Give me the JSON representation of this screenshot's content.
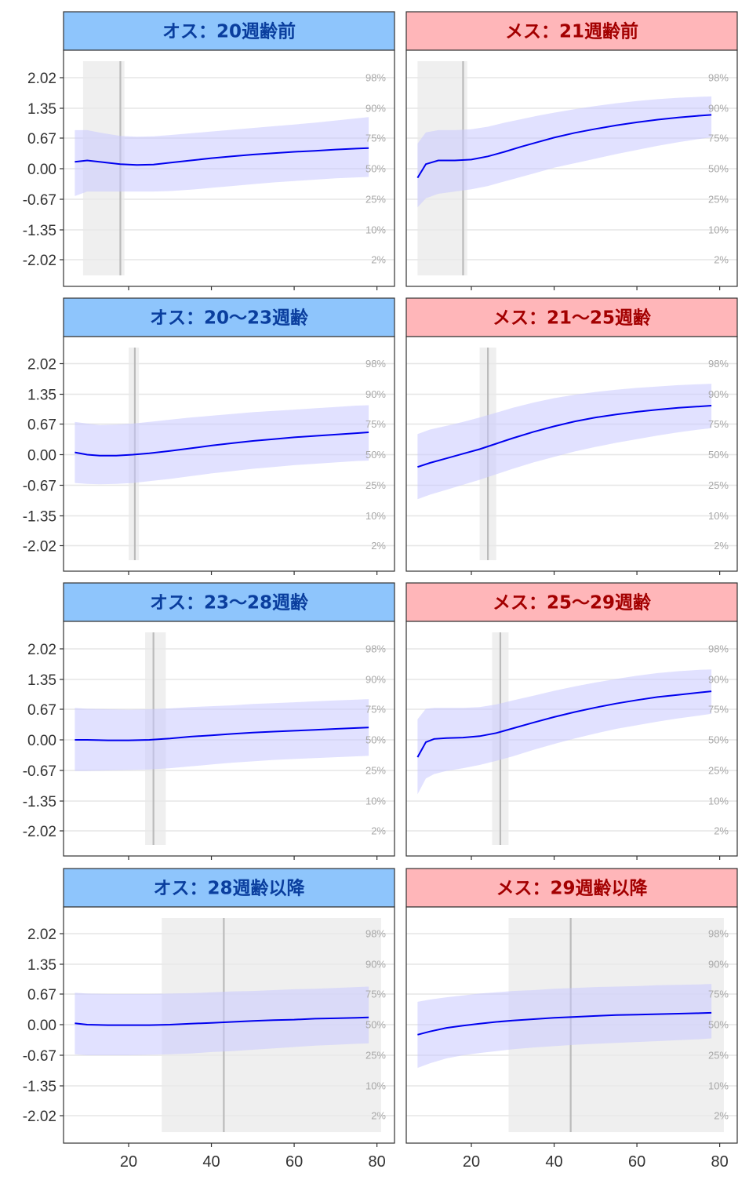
{
  "chart_data": {
    "type": "line",
    "y_ticks": [
      2.02,
      1.35,
      0.67,
      0.0,
      -0.67,
      -1.35,
      -2.02
    ],
    "y_tick_labels": [
      "2.02",
      "1.35",
      "0.67",
      "0.00",
      "-0.67",
      "-1.35",
      "-2.02"
    ],
    "percentile_labels": [
      "98%",
      "90%",
      "75%",
      "50%",
      "25%",
      "10%",
      "2%"
    ],
    "x_ticks": [
      20,
      40,
      60,
      80
    ],
    "x_tick_labels": [
      "20",
      "40",
      "60",
      "80"
    ],
    "xlim": [
      5,
      83
    ],
    "ylim": [
      -2.5,
      2.6
    ],
    "grid": "horizontal",
    "colors": {
      "male_strip": "#8ec5fc",
      "male_text": "#0a3e9e",
      "female_strip": "#ffb6b9",
      "female_text": "#a30000",
      "line": "#0000ee",
      "band": "#d6d6ff",
      "highlight": "#e8e8e8",
      "grid": "#e6e6e6"
    },
    "panels": [
      {
        "title": "オス：20週齢前",
        "sex": "male",
        "x": [
          7,
          10,
          14,
          18,
          22,
          26,
          30,
          35,
          40,
          45,
          50,
          55,
          60,
          65,
          70,
          75,
          78
        ],
        "median": [
          0.15,
          0.18,
          0.14,
          0.1,
          0.08,
          0.09,
          0.13,
          0.18,
          0.23,
          0.27,
          0.31,
          0.34,
          0.37,
          0.39,
          0.42,
          0.44,
          0.45
        ],
        "upper": [
          0.85,
          0.85,
          0.78,
          0.72,
          0.7,
          0.71,
          0.74,
          0.78,
          0.82,
          0.86,
          0.9,
          0.94,
          0.98,
          1.02,
          1.07,
          1.12,
          1.15
        ],
        "lower": [
          -0.6,
          -0.5,
          -0.5,
          -0.5,
          -0.5,
          -0.5,
          -0.49,
          -0.46,
          -0.42,
          -0.38,
          -0.34,
          -0.3,
          -0.27,
          -0.24,
          -0.21,
          -0.19,
          -0.18
        ],
        "highlight": [
          9,
          19
        ],
        "vline": 18
      },
      {
        "title": "メス：21週齢前",
        "sex": "female",
        "x": [
          7,
          9,
          12,
          16,
          20,
          24,
          28,
          32,
          36,
          40,
          45,
          50,
          55,
          60,
          65,
          70,
          75,
          78
        ],
        "median": [
          -0.2,
          0.1,
          0.18,
          0.18,
          0.2,
          0.27,
          0.37,
          0.48,
          0.58,
          0.68,
          0.79,
          0.88,
          0.96,
          1.03,
          1.09,
          1.14,
          1.18,
          1.2
        ],
        "upper": [
          0.55,
          0.8,
          0.85,
          0.85,
          0.87,
          0.93,
          1.02,
          1.1,
          1.18,
          1.25,
          1.33,
          1.4,
          1.46,
          1.51,
          1.55,
          1.58,
          1.6,
          1.61
        ],
        "lower": [
          -0.85,
          -0.65,
          -0.55,
          -0.5,
          -0.45,
          -0.38,
          -0.28,
          -0.18,
          -0.08,
          0.02,
          0.12,
          0.22,
          0.32,
          0.41,
          0.5,
          0.58,
          0.65,
          0.69
        ],
        "highlight": [
          7,
          19
        ],
        "vline": 18
      },
      {
        "title": "オス：20～23週齢",
        "sex": "male",
        "x": [
          7,
          10,
          13,
          17,
          21,
          25,
          30,
          35,
          40,
          45,
          50,
          55,
          60,
          65,
          70,
          75,
          78
        ],
        "median": [
          0.05,
          0.0,
          -0.02,
          -0.02,
          0.0,
          0.03,
          0.08,
          0.14,
          0.2,
          0.25,
          0.3,
          0.34,
          0.38,
          0.41,
          0.44,
          0.47,
          0.49
        ],
        "upper": [
          0.72,
          0.68,
          0.65,
          0.66,
          0.68,
          0.72,
          0.77,
          0.82,
          0.86,
          0.9,
          0.94,
          0.97,
          1.0,
          1.03,
          1.06,
          1.09,
          1.1
        ],
        "lower": [
          -0.62,
          -0.64,
          -0.65,
          -0.64,
          -0.62,
          -0.58,
          -0.53,
          -0.47,
          -0.41,
          -0.36,
          -0.31,
          -0.27,
          -0.23,
          -0.2,
          -0.17,
          -0.14,
          -0.13
        ],
        "highlight": [
          20,
          22.5
        ],
        "vline": 21.5
      },
      {
        "title": "メス：21～25週齢",
        "sex": "female",
        "x": [
          7,
          10,
          14,
          18,
          22,
          26,
          30,
          35,
          40,
          45,
          50,
          55,
          60,
          65,
          70,
          75,
          78
        ],
        "median": [
          -0.27,
          -0.18,
          -0.08,
          0.02,
          0.12,
          0.24,
          0.36,
          0.5,
          0.62,
          0.73,
          0.82,
          0.89,
          0.95,
          1.0,
          1.04,
          1.07,
          1.09
        ],
        "upper": [
          0.45,
          0.55,
          0.63,
          0.72,
          0.82,
          0.93,
          1.04,
          1.16,
          1.26,
          1.34,
          1.4,
          1.45,
          1.49,
          1.52,
          1.55,
          1.57,
          1.58
        ],
        "lower": [
          -0.98,
          -0.88,
          -0.77,
          -0.66,
          -0.55,
          -0.43,
          -0.31,
          -0.17,
          -0.05,
          0.07,
          0.17,
          0.26,
          0.34,
          0.42,
          0.49,
          0.55,
          0.58
        ],
        "highlight": [
          22,
          26
        ],
        "vline": 24
      },
      {
        "title": "オス：23～28週齢",
        "sex": "male",
        "x": [
          7,
          10,
          15,
          20,
          25,
          30,
          35,
          40,
          45,
          50,
          55,
          60,
          65,
          70,
          75,
          78
        ],
        "median": [
          0.0,
          0.0,
          -0.01,
          -0.01,
          0.0,
          0.03,
          0.07,
          0.1,
          0.13,
          0.16,
          0.18,
          0.2,
          0.22,
          0.24,
          0.26,
          0.27
        ],
        "upper": [
          0.7,
          0.68,
          0.67,
          0.66,
          0.67,
          0.69,
          0.72,
          0.74,
          0.76,
          0.79,
          0.81,
          0.83,
          0.85,
          0.87,
          0.89,
          0.9
        ],
        "lower": [
          -0.68,
          -0.68,
          -0.67,
          -0.66,
          -0.65,
          -0.62,
          -0.58,
          -0.54,
          -0.5,
          -0.47,
          -0.44,
          -0.42,
          -0.4,
          -0.38,
          -0.36,
          -0.35
        ],
        "highlight": [
          24,
          29
        ],
        "vline": 26
      },
      {
        "title": "メス：25～29週齢",
        "sex": "female",
        "x": [
          7,
          9,
          11,
          14,
          18,
          22,
          26,
          30,
          35,
          40,
          45,
          50,
          55,
          60,
          65,
          70,
          75,
          78
        ],
        "median": [
          -0.38,
          -0.05,
          0.02,
          0.04,
          0.05,
          0.08,
          0.15,
          0.25,
          0.38,
          0.5,
          0.61,
          0.71,
          0.8,
          0.88,
          0.95,
          1.0,
          1.05,
          1.08
        ],
        "upper": [
          0.45,
          0.68,
          0.7,
          0.7,
          0.7,
          0.72,
          0.78,
          0.87,
          0.98,
          1.09,
          1.19,
          1.28,
          1.36,
          1.43,
          1.49,
          1.53,
          1.56,
          1.57
        ],
        "lower": [
          -1.2,
          -0.85,
          -0.75,
          -0.68,
          -0.62,
          -0.55,
          -0.46,
          -0.36,
          -0.22,
          -0.09,
          0.03,
          0.14,
          0.24,
          0.32,
          0.4,
          0.47,
          0.53,
          0.57
        ],
        "highlight": [
          25,
          29
        ],
        "vline": 27
      },
      {
        "title": "オス：28週齢以降",
        "sex": "male",
        "x": [
          7,
          10,
          15,
          20,
          25,
          30,
          35,
          40,
          45,
          50,
          55,
          60,
          65,
          70,
          75,
          78
        ],
        "median": [
          0.03,
          0.0,
          -0.01,
          -0.01,
          -0.01,
          0.0,
          0.02,
          0.04,
          0.06,
          0.08,
          0.1,
          0.11,
          0.13,
          0.14,
          0.15,
          0.16
        ],
        "upper": [
          0.7,
          0.68,
          0.67,
          0.67,
          0.67,
          0.68,
          0.69,
          0.71,
          0.73,
          0.74,
          0.76,
          0.78,
          0.79,
          0.81,
          0.83,
          0.84
        ],
        "lower": [
          -0.65,
          -0.67,
          -0.67,
          -0.67,
          -0.66,
          -0.65,
          -0.63,
          -0.6,
          -0.58,
          -0.55,
          -0.52,
          -0.49,
          -0.46,
          -0.44,
          -0.42,
          -0.41
        ],
        "highlight": [
          28,
          81
        ],
        "vline": 43
      },
      {
        "title": "メス：29週齢以降",
        "sex": "female",
        "x": [
          7,
          10,
          14,
          18,
          22,
          26,
          30,
          35,
          40,
          45,
          50,
          55,
          60,
          65,
          70,
          75,
          78
        ],
        "median": [
          -0.22,
          -0.15,
          -0.07,
          -0.02,
          0.02,
          0.06,
          0.09,
          0.12,
          0.15,
          0.17,
          0.19,
          0.21,
          0.22,
          0.23,
          0.24,
          0.25,
          0.26
        ],
        "upper": [
          0.5,
          0.55,
          0.6,
          0.64,
          0.68,
          0.71,
          0.74,
          0.76,
          0.79,
          0.81,
          0.83,
          0.84,
          0.85,
          0.87,
          0.88,
          0.89,
          0.9
        ],
        "lower": [
          -0.95,
          -0.85,
          -0.74,
          -0.67,
          -0.62,
          -0.58,
          -0.54,
          -0.5,
          -0.47,
          -0.44,
          -0.42,
          -0.4,
          -0.38,
          -0.36,
          -0.34,
          -0.32,
          -0.3
        ],
        "highlight": [
          29,
          81
        ],
        "vline": 44
      }
    ]
  }
}
